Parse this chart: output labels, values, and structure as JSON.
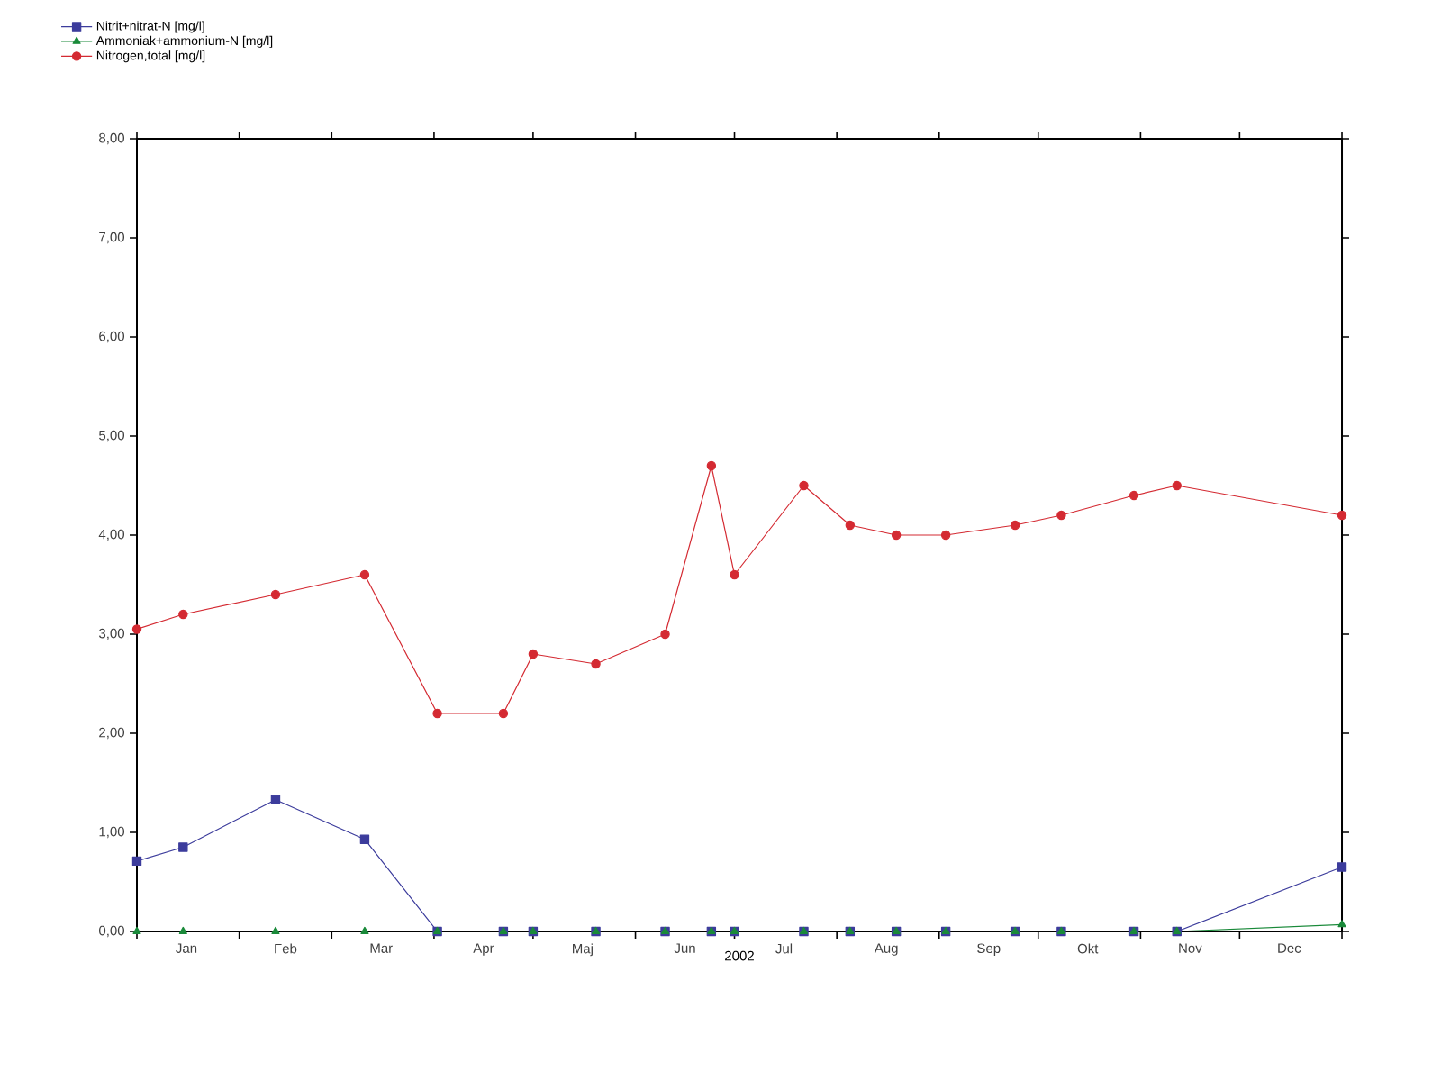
{
  "chart_data": {
    "type": "line",
    "xlabel": "2002",
    "x": [
      "2002-01-01",
      "2002-01-15",
      "2002-02-12",
      "2002-03-11",
      "2002-04-02",
      "2002-04-22",
      "2002-05-01",
      "2002-05-20",
      "2002-06-10",
      "2002-06-24",
      "2002-07-01",
      "2002-07-22",
      "2002-08-05",
      "2002-08-19",
      "2002-09-03",
      "2002-09-24",
      "2002-10-08",
      "2002-10-30",
      "2002-11-12",
      "2003-01-01"
    ],
    "series": [
      {
        "name": "Nitrit+nitrat-N [mg/l]",
        "color": "#3c3c9c",
        "marker": "square",
        "values": [
          0.71,
          0.85,
          1.33,
          0.93,
          0,
          0,
          0,
          0,
          0,
          0,
          0,
          0,
          0,
          0,
          0,
          0,
          0,
          0,
          0,
          0.65
        ]
      },
      {
        "name": "Ammoniak+ammonium-N [mg/l]",
        "color": "#1a8a3a",
        "marker": "triangle",
        "values": [
          0,
          0,
          0,
          0,
          0,
          0,
          0,
          0,
          0,
          0,
          0,
          0,
          0,
          0,
          0,
          0,
          0,
          0,
          0,
          0.07
        ]
      },
      {
        "name": "Nitrogen,total [mg/l]",
        "color": "#d42a32",
        "marker": "circle",
        "values": [
          3.05,
          3.2,
          3.4,
          3.6,
          2.2,
          2.2,
          2.8,
          2.7,
          3.0,
          4.7,
          3.6,
          4.5,
          4.1,
          4.0,
          4.0,
          4.1,
          4.2,
          4.4,
          4.5,
          4.2
        ]
      }
    ],
    "xlim": [
      "2002-01-01",
      "2003-01-01"
    ],
    "xticks": [
      {
        "value": "2002-01-01",
        "label": null
      },
      {
        "value": "2002-01-16",
        "label": "Jan"
      },
      {
        "value": "2002-02-01",
        "label": null
      },
      {
        "value": "2002-02-15",
        "label": "Feb"
      },
      {
        "value": "2002-03-01",
        "label": null
      },
      {
        "value": "2002-03-16",
        "label": "Mar"
      },
      {
        "value": "2002-04-01",
        "label": null
      },
      {
        "value": "2002-04-16",
        "label": "Apr"
      },
      {
        "value": "2002-05-01",
        "label": null
      },
      {
        "value": "2002-05-16",
        "label": "Maj"
      },
      {
        "value": "2002-06-01",
        "label": null
      },
      {
        "value": "2002-06-16",
        "label": "Jun"
      },
      {
        "value": "2002-07-01",
        "label": null
      },
      {
        "value": "2002-07-16",
        "label": "Jul"
      },
      {
        "value": "2002-08-01",
        "label": null
      },
      {
        "value": "2002-08-16",
        "label": "Aug"
      },
      {
        "value": "2002-09-01",
        "label": null
      },
      {
        "value": "2002-09-16",
        "label": "Sep"
      },
      {
        "value": "2002-10-01",
        "label": null
      },
      {
        "value": "2002-10-16",
        "label": "Okt"
      },
      {
        "value": "2002-11-01",
        "label": null
      },
      {
        "value": "2002-11-16",
        "label": "Nov"
      },
      {
        "value": "2002-12-01",
        "label": null
      },
      {
        "value": "2002-12-16",
        "label": "Dec"
      },
      {
        "value": "2003-01-01",
        "label": null
      }
    ],
    "ylim": [
      0,
      8
    ],
    "yticks": [
      {
        "value": 0,
        "label": "0,00"
      },
      {
        "value": 1,
        "label": "1,00"
      },
      {
        "value": 2,
        "label": "2,00"
      },
      {
        "value": 3,
        "label": "3,00"
      },
      {
        "value": 4,
        "label": "4,00"
      },
      {
        "value": 5,
        "label": "5,00"
      },
      {
        "value": 6,
        "label": "6,00"
      },
      {
        "value": 7,
        "label": "7,00"
      },
      {
        "value": 8,
        "label": "8,00"
      }
    ],
    "grid": false,
    "legend": "top left",
    "line_style": "solid"
  }
}
